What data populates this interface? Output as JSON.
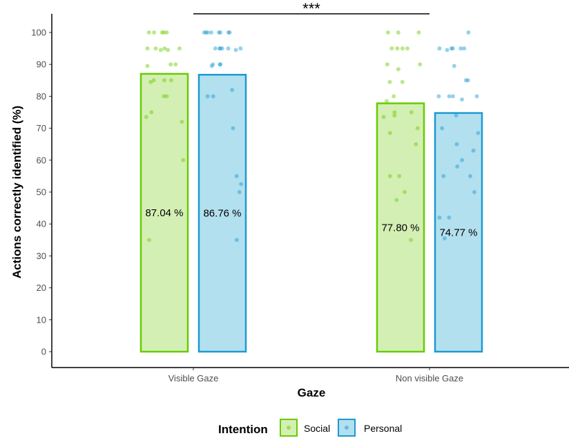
{
  "chart_data": {
    "type": "bar",
    "xlabel": "Gaze",
    "ylabel": "Actions correctly identified (%)",
    "ylim": [
      0,
      100
    ],
    "yticks": [
      "0",
      "10",
      "20",
      "30",
      "40",
      "50",
      "60",
      "70",
      "80",
      "90",
      "100"
    ],
    "categories": [
      "Visible Gaze",
      "Non visible Gaze"
    ],
    "legend": {
      "title": "Intention",
      "position": "bottom"
    },
    "series": [
      {
        "name": "Social",
        "values": [
          87.04,
          77.8
        ],
        "labels": [
          "87.04 %",
          "77.80 %"
        ],
        "fill": "#d4efb4",
        "stroke": "#66cc00",
        "points": [
          [
            100,
            100,
            100,
            100,
            100,
            95,
            95,
            95,
            94.5,
            94.5,
            95,
            90,
            90,
            89.5,
            85,
            85,
            85,
            84.5,
            80,
            80,
            75,
            73.5,
            72,
            60,
            35
          ],
          [
            100,
            100,
            100,
            95,
            95,
            95,
            95,
            90,
            90,
            88.5,
            84.5,
            84.5,
            80,
            78.5,
            75,
            75,
            74,
            73.5,
            70,
            68.5,
            65,
            55,
            55,
            50,
            47.5,
            35
          ]
        ]
      },
      {
        "name": "Personal",
        "values": [
          86.76,
          74.77
        ],
        "labels": [
          "86.76 %",
          "74.77 %"
        ],
        "fill": "#b3e0ef",
        "stroke": "#1a9ad1",
        "points": [
          [
            100,
            100,
            100,
            100,
            100,
            100,
            100,
            100,
            95,
            95,
            95,
            95,
            95,
            95,
            94.5,
            90,
            90,
            90,
            89.5,
            82,
            80,
            80,
            70,
            55,
            52.5,
            50,
            35
          ],
          [
            100,
            95,
            95,
            95,
            95,
            95,
            94.5,
            89.5,
            85,
            85,
            80,
            80,
            80,
            80,
            79,
            74,
            70,
            68.5,
            65,
            63,
            60,
            58,
            55,
            55,
            50,
            42,
            42,
            35.5
          ]
        ]
      }
    ],
    "annotations": [
      {
        "text": "***",
        "between": [
          "Visible Gaze",
          "Non visible Gaze"
        ]
      }
    ]
  }
}
